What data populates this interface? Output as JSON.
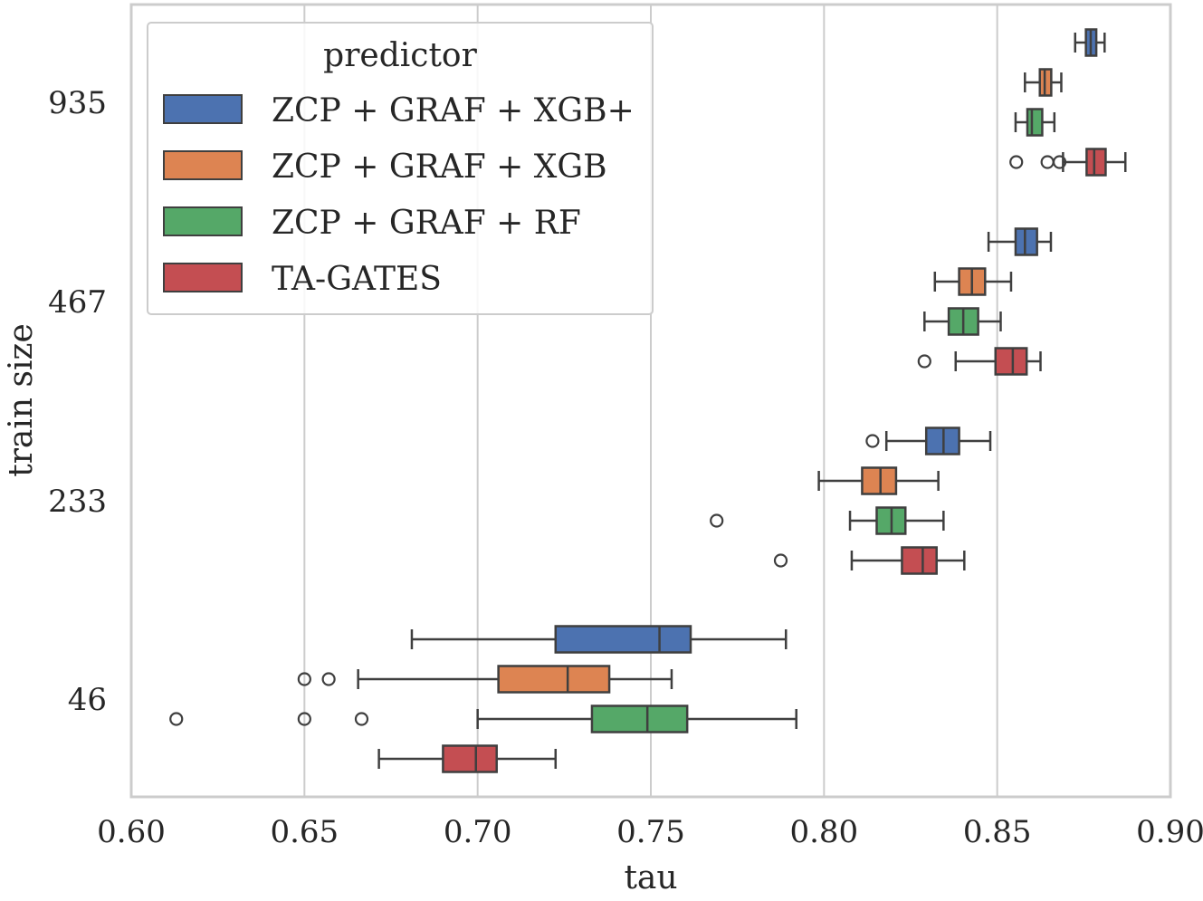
{
  "chart_data": {
    "type": "boxplot",
    "orientation": "horizontal",
    "title": "",
    "xlabel": "tau",
    "ylabel": "train size",
    "xlim": [
      0.6,
      0.9
    ],
    "xticks": [
      0.6,
      0.65,
      0.7,
      0.75,
      0.8,
      0.85,
      0.9
    ],
    "xtick_labels": [
      "0.60",
      "0.65",
      "0.70",
      "0.75",
      "0.80",
      "0.85",
      "0.90"
    ],
    "categories": [
      "935",
      "467",
      "233",
      "46"
    ],
    "grid": "vertical",
    "legend": {
      "title": "predictor",
      "placement": "top-left",
      "entries": [
        {
          "label": "ZCP + GRAF + XGB+",
          "color": "#4c72b0"
        },
        {
          "label": "ZCP + GRAF + XGB",
          "color": "#dd8452"
        },
        {
          "label": "ZCP + GRAF + RF",
          "color": "#55a868"
        },
        {
          "label": "TA-GATES",
          "color": "#c44e52"
        }
      ]
    },
    "series": [
      {
        "name": "ZCP + GRAF + XGB+",
        "color": "#4c72b0",
        "boxes": [
          {
            "category": "935",
            "whisker_low": 0.8725,
            "q1": 0.8756,
            "median": 0.877,
            "q3": 0.8786,
            "whisker_high": 0.881,
            "outliers": []
          },
          {
            "category": "467",
            "whisker_low": 0.8475,
            "q1": 0.8553,
            "median": 0.858,
            "q3": 0.8615,
            "whisker_high": 0.8655,
            "outliers": []
          },
          {
            "category": "233",
            "whisker_low": 0.818,
            "q1": 0.8295,
            "median": 0.8345,
            "q3": 0.839,
            "whisker_high": 0.848,
            "outliers": [
              0.814
            ]
          },
          {
            "category": "46",
            "whisker_low": 0.681,
            "q1": 0.7225,
            "median": 0.7525,
            "q3": 0.7615,
            "whisker_high": 0.789,
            "outliers": []
          }
        ]
      },
      {
        "name": "ZCP + GRAF + XGB",
        "color": "#dd8452",
        "boxes": [
          {
            "category": "935",
            "whisker_low": 0.858,
            "q1": 0.8623,
            "median": 0.8637,
            "q3": 0.8656,
            "whisker_high": 0.8685,
            "outliers": []
          },
          {
            "category": "467",
            "whisker_low": 0.832,
            "q1": 0.839,
            "median": 0.8427,
            "q3": 0.8465,
            "whisker_high": 0.854,
            "outliers": []
          },
          {
            "category": "233",
            "whisker_low": 0.7985,
            "q1": 0.811,
            "median": 0.8163,
            "q3": 0.8208,
            "whisker_high": 0.833,
            "outliers": []
          },
          {
            "category": "46",
            "whisker_low": 0.6655,
            "q1": 0.706,
            "median": 0.726,
            "q3": 0.738,
            "whisker_high": 0.756,
            "outliers": [
              0.65,
              0.657
            ]
          }
        ]
      },
      {
        "name": "ZCP + GRAF + RF",
        "color": "#55a868",
        "boxes": [
          {
            "category": "935",
            "whisker_low": 0.8553,
            "q1": 0.8587,
            "median": 0.86,
            "q3": 0.863,
            "whisker_high": 0.8665,
            "outliers": []
          },
          {
            "category": "467",
            "whisker_low": 0.829,
            "q1": 0.836,
            "median": 0.8402,
            "q3": 0.8445,
            "whisker_high": 0.851,
            "outliers": []
          },
          {
            "category": "233",
            "whisker_low": 0.8075,
            "q1": 0.8152,
            "median": 0.8195,
            "q3": 0.8235,
            "whisker_high": 0.8345,
            "outliers": [
              0.769
            ]
          },
          {
            "category": "46",
            "whisker_low": 0.7,
            "q1": 0.733,
            "median": 0.749,
            "q3": 0.7605,
            "whisker_high": 0.792,
            "outliers": [
              0.613,
              0.65,
              0.6665
            ]
          }
        ]
      },
      {
        "name": "TA-GATES",
        "color": "#c44e52",
        "boxes": [
          {
            "category": "935",
            "whisker_low": 0.869,
            "q1": 0.8758,
            "median": 0.878,
            "q3": 0.8813,
            "whisker_high": 0.887,
            "outliers": [
              0.8555,
              0.8645,
              0.868
            ]
          },
          {
            "category": "467",
            "whisker_low": 0.838,
            "q1": 0.8495,
            "median": 0.8545,
            "q3": 0.8585,
            "whisker_high": 0.8625,
            "outliers": [
              0.829
            ]
          },
          {
            "category": "233",
            "whisker_low": 0.808,
            "q1": 0.8225,
            "median": 0.8285,
            "q3": 0.8325,
            "whisker_high": 0.8405,
            "outliers": [
              0.7875
            ]
          },
          {
            "category": "46",
            "whisker_low": 0.6715,
            "q1": 0.69,
            "median": 0.6995,
            "q3": 0.7055,
            "whisker_high": 0.7225,
            "outliers": []
          }
        ]
      }
    ]
  }
}
